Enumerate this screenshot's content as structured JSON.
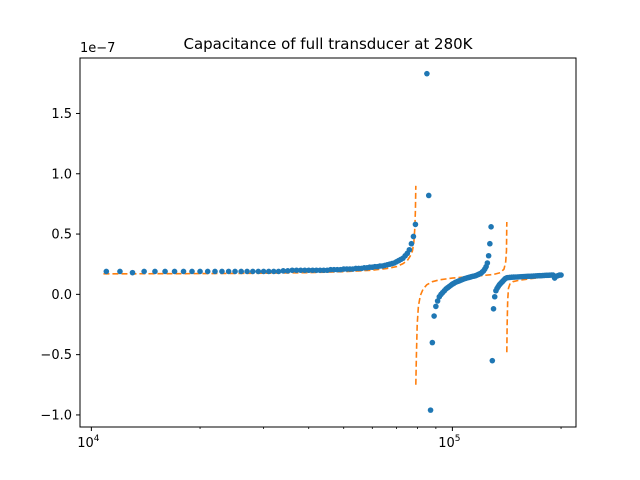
{
  "chart_data": {
    "type": "scatter",
    "title": "Capacitance of full transducer at 280K",
    "xlabel": "",
    "ylabel": "",
    "x_scale": "log",
    "xlim": [
      9300,
      220000
    ],
    "ylim": [
      -1.1e-07,
      1.96e-07
    ],
    "y_offset_label": "1e−7",
    "x_ticks": [
      {
        "value": 10000,
        "base": "10",
        "exp": "4"
      },
      {
        "value": 100000,
        "base": "10",
        "exp": "5"
      }
    ],
    "y_ticks": [
      {
        "value": -1e-07,
        "label": "−1.0"
      },
      {
        "value": -5e-08,
        "label": "−0.5"
      },
      {
        "value": 0,
        "label": "0.0"
      },
      {
        "value": 5e-08,
        "label": "0.5"
      },
      {
        "value": 1e-07,
        "label": "1.0"
      },
      {
        "value": 1.5e-07,
        "label": "1.5"
      }
    ],
    "grid": false,
    "colors": {
      "measured": "#1f77b4",
      "model": "#ff7f0e"
    },
    "series": [
      {
        "kind": "points",
        "points": [
          [
            11000,
            1.9e-08
          ],
          [
            12000,
            1.9e-08
          ],
          [
            13000,
            1.8e-08
          ],
          [
            14000,
            1.9e-08
          ],
          [
            15000,
            1.9e-08
          ],
          [
            16000,
            1.9e-08
          ],
          [
            17000,
            1.9e-08
          ],
          [
            18000,
            1.9e-08
          ],
          [
            19000,
            1.9e-08
          ],
          [
            20000,
            1.9e-08
          ],
          [
            21000,
            1.9e-08
          ],
          [
            22000,
            1.9e-08
          ],
          [
            23000,
            1.9e-08
          ],
          [
            24000,
            1.9e-08
          ],
          [
            25000,
            1.9e-08
          ],
          [
            26000,
            1.9e-08
          ],
          [
            27000,
            1.9e-08
          ],
          [
            28000,
            1.9e-08
          ],
          [
            29000,
            1.9e-08
          ],
          [
            30000,
            1.9e-08
          ],
          [
            31000,
            1.9e-08
          ],
          [
            32000,
            1.9e-08
          ],
          [
            33000,
            1.9e-08
          ],
          [
            34000,
            1.95e-08
          ],
          [
            35000,
            1.95e-08
          ],
          [
            36000,
            2e-08
          ],
          [
            37000,
            2e-08
          ],
          [
            38000,
            2e-08
          ],
          [
            39000,
            2e-08
          ],
          [
            40000,
            2e-08
          ],
          [
            41000,
            2e-08
          ],
          [
            42000,
            2e-08
          ],
          [
            43000,
            2e-08
          ],
          [
            44000,
            2e-08
          ],
          [
            45000,
            2e-08
          ],
          [
            46000,
            2.05e-08
          ],
          [
            47000,
            2.05e-08
          ],
          [
            48000,
            2.05e-08
          ],
          [
            49000,
            2.05e-08
          ],
          [
            50000,
            2.1e-08
          ],
          [
            51000,
            2.1e-08
          ],
          [
            52000,
            2.1e-08
          ],
          [
            53000,
            2.1e-08
          ],
          [
            54000,
            2.15e-08
          ],
          [
            55000,
            2.15e-08
          ],
          [
            56000,
            2.15e-08
          ],
          [
            57000,
            2.2e-08
          ],
          [
            58000,
            2.2e-08
          ],
          [
            59000,
            2.25e-08
          ],
          [
            60000,
            2.25e-08
          ],
          [
            61000,
            2.3e-08
          ],
          [
            62000,
            2.3e-08
          ],
          [
            63000,
            2.35e-08
          ],
          [
            64000,
            2.35e-08
          ],
          [
            65000,
            2.4e-08
          ],
          [
            66000,
            2.45e-08
          ],
          [
            67000,
            2.5e-08
          ],
          [
            68000,
            2.55e-08
          ],
          [
            69000,
            2.6e-08
          ],
          [
            70000,
            2.7e-08
          ],
          [
            71000,
            2.8e-08
          ],
          [
            72000,
            2.9e-08
          ],
          [
            73000,
            3e-08
          ],
          [
            74000,
            3.2e-08
          ],
          [
            75000,
            3.4e-08
          ],
          [
            76000,
            3.7e-08
          ],
          [
            77000,
            4.2e-08
          ],
          [
            78000,
            4.8e-08
          ],
          [
            79000,
            5.8e-08
          ],
          [
            85000,
            1.83e-07
          ],
          [
            86000,
            8.2e-08
          ],
          [
            87000,
            -9.6e-08
          ],
          [
            88000,
            -4e-08
          ],
          [
            89000,
            -1.8e-08
          ],
          [
            90000,
            -1e-08
          ],
          [
            91000,
            -5.5e-09
          ],
          [
            92000,
            -2e-09
          ],
          [
            93000,
            0
          ],
          [
            94000,
            1.5e-09
          ],
          [
            95000,
            3e-09
          ],
          [
            96000,
            4.5e-09
          ],
          [
            97000,
            5.5e-09
          ],
          [
            98000,
            6.5e-09
          ],
          [
            99000,
            7.5e-09
          ],
          [
            100000,
            8.5e-09
          ],
          [
            101000,
            9.2e-09
          ],
          [
            102000,
            1e-08
          ],
          [
            103000,
            1.05e-08
          ],
          [
            104000,
            1.1e-08
          ],
          [
            105000,
            1.15e-08
          ],
          [
            106000,
            1.2e-08
          ],
          [
            107000,
            1.25e-08
          ],
          [
            108000,
            1.3e-08
          ],
          [
            109000,
            1.33e-08
          ],
          [
            110000,
            1.37e-08
          ],
          [
            111000,
            1.4e-08
          ],
          [
            112000,
            1.43e-08
          ],
          [
            113000,
            1.47e-08
          ],
          [
            114000,
            1.5e-08
          ],
          [
            115000,
            1.52e-08
          ],
          [
            116000,
            1.55e-08
          ],
          [
            117000,
            1.6e-08
          ],
          [
            118000,
            1.65e-08
          ],
          [
            119000,
            1.7e-08
          ],
          [
            120000,
            1.75e-08
          ],
          [
            121000,
            1.85e-08
          ],
          [
            122000,
            1.95e-08
          ],
          [
            123000,
            2.1e-08
          ],
          [
            124000,
            2.3e-08
          ],
          [
            125000,
            2.6e-08
          ],
          [
            126000,
            3.2e-08
          ],
          [
            127000,
            4.2e-08
          ],
          [
            128000,
            5.6e-08
          ],
          [
            129000,
            -5.5e-08
          ],
          [
            130000,
            -1.2e-08
          ],
          [
            131000,
            -2e-09
          ],
          [
            132000,
            3e-09
          ],
          [
            133000,
            5e-09
          ],
          [
            134000,
            6.5e-09
          ],
          [
            135000,
            8e-09
          ],
          [
            136000,
            9e-09
          ],
          [
            137000,
            1e-08
          ],
          [
            138000,
            1.1e-08
          ],
          [
            139000,
            1.2e-08
          ],
          [
            140000,
            1.3e-08
          ],
          [
            141000,
            1.35e-08
          ],
          [
            142000,
            1.38e-08
          ],
          [
            144000,
            1.4e-08
          ],
          [
            146000,
            1.42e-08
          ],
          [
            148000,
            1.43e-08
          ],
          [
            150000,
            1.44e-08
          ],
          [
            152000,
            1.45e-08
          ],
          [
            154000,
            1.46e-08
          ],
          [
            156000,
            1.47e-08
          ],
          [
            158000,
            1.48e-08
          ],
          [
            160000,
            1.49e-08
          ],
          [
            162000,
            1.5e-08
          ],
          [
            164000,
            1.5e-08
          ],
          [
            166000,
            1.51e-08
          ],
          [
            168000,
            1.52e-08
          ],
          [
            170000,
            1.53e-08
          ],
          [
            172000,
            1.54e-08
          ],
          [
            174000,
            1.55e-08
          ],
          [
            176000,
            1.55e-08
          ],
          [
            178000,
            1.56e-08
          ],
          [
            180000,
            1.57e-08
          ],
          [
            182000,
            1.58e-08
          ],
          [
            184000,
            1.58e-08
          ],
          [
            186000,
            1.59e-08
          ],
          [
            188000,
            1.6e-08
          ],
          [
            190000,
            1.6e-08
          ],
          [
            192000,
            1.35e-08
          ],
          [
            194000,
            1.5e-08
          ],
          [
            196000,
            1.55e-08
          ],
          [
            198000,
            1.6e-08
          ],
          [
            200000,
            1.6e-08
          ]
        ]
      },
      {
        "kind": "dashed-line",
        "segments": [
          [
            [
              10800,
              1.7e-08
            ],
            [
              20000,
              1.72e-08
            ],
            [
              30000,
              1.75e-08
            ],
            [
              40000,
              1.8e-08
            ],
            [
              50000,
              1.88e-08
            ],
            [
              60000,
              2e-08
            ],
            [
              66000,
              2.15e-08
            ],
            [
              70000,
              2.3e-08
            ],
            [
              73000,
              2.55e-08
            ],
            [
              75000,
              2.8e-08
            ],
            [
              76500,
              3.2e-08
            ],
            [
              77500,
              3.6e-08
            ],
            [
              78200,
              4.3e-08
            ],
            [
              78700,
              5.5e-08
            ],
            [
              79000,
              7e-08
            ],
            [
              79200,
              9e-08
            ]
          ],
          [
            [
              79200,
              -7.5e-08
            ],
            [
              79500,
              -5e-08
            ],
            [
              79900,
              -2.5e-08
            ],
            [
              80500,
              -1e-08
            ],
            [
              81500,
              -1e-09
            ],
            [
              83000,
              4.5e-09
            ],
            [
              85000,
              8e-09
            ],
            [
              88000,
              1.05e-08
            ],
            [
              92000,
              1.2e-08
            ],
            [
              100000,
              1.35e-08
            ],
            [
              110000,
              1.45e-08
            ],
            [
              120000,
              1.55e-08
            ],
            [
              130000,
              1.65e-08
            ],
            [
              136000,
              1.8e-08
            ],
            [
              139000,
              2.1e-08
            ],
            [
              140500,
              2.7e-08
            ],
            [
              141200,
              3.6e-08
            ],
            [
              141500,
              6e-08
            ]
          ],
          [
            [
              141500,
              -4.8e-08
            ],
            [
              141800,
              -2.5e-08
            ],
            [
              142300,
              -5e-09
            ],
            [
              143000,
              5e-09
            ],
            [
              144500,
              9e-09
            ],
            [
              147000,
              1.05e-08
            ],
            [
              152000,
              1.15e-08
            ],
            [
              160000,
              1.25e-08
            ],
            [
              170000,
              1.35e-08
            ],
            [
              180000,
              1.45e-08
            ],
            [
              190000,
              1.5e-08
            ],
            [
              200000,
              1.55e-08
            ]
          ]
        ]
      }
    ]
  }
}
